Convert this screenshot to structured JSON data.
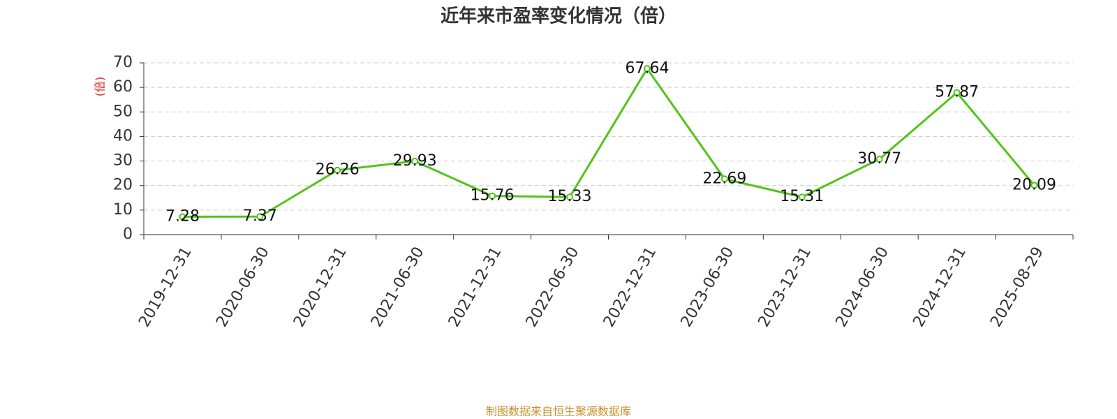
{
  "chart_data": {
    "type": "line",
    "title": "近年来市盈率变化情况（倍）",
    "y_label": "(倍)",
    "footer": "制图数据来自恒生聚源数据库",
    "categories": [
      "2019-12-31",
      "2020-06-30",
      "2020-12-31",
      "2021-06-30",
      "2021-12-31",
      "2022-06-30",
      "2022-12-31",
      "2023-06-30",
      "2023-12-31",
      "2024-06-30",
      "2024-12-31",
      "2025-08-29"
    ],
    "values": [
      7.28,
      7.37,
      26.26,
      29.93,
      15.76,
      15.33,
      67.64,
      22.69,
      15.31,
      30.77,
      57.87,
      20.09
    ],
    "color": "#52c41a",
    "ylim": [
      0,
      70
    ],
    "yticks": [
      0,
      10,
      20,
      30,
      40,
      50,
      60,
      70
    ],
    "grid": true
  }
}
